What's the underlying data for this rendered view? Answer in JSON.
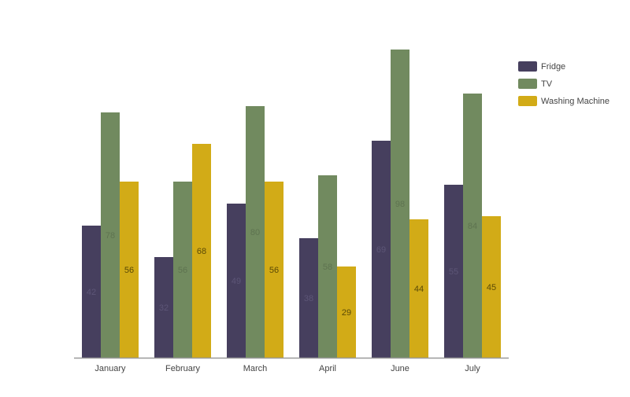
{
  "chart_data": {
    "type": "bar",
    "categories": [
      "January",
      "February",
      "March",
      "April",
      "June",
      "July"
    ],
    "series": [
      {
        "name": "Fridge",
        "color": "#463f5e",
        "label_color": "#5d5677",
        "values": [
          42,
          32,
          49,
          38,
          69,
          55
        ]
      },
      {
        "name": "TV",
        "color": "#718a5f",
        "label_color": "#5e7350",
        "values": [
          78,
          56,
          80,
          58,
          98,
          84
        ]
      },
      {
        "name": "Washing Machine",
        "color": "#d2ab17",
        "label_color": "#5b4a06",
        "values": [
          56,
          68,
          56,
          29,
          44,
          45
        ]
      }
    ],
    "ylim": [
      0,
      100
    ],
    "grid": false,
    "legend_position": "top-right",
    "axis_color": "#999999"
  }
}
